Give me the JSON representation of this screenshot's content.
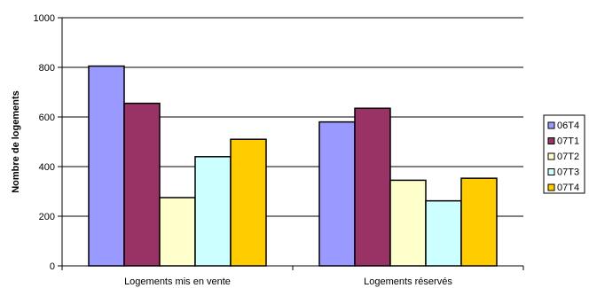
{
  "chart_data": {
    "type": "bar",
    "title": "",
    "xlabel": "",
    "ylabel": "Nombre de logements",
    "ylim": [
      0,
      1000
    ],
    "yticks": [
      0,
      200,
      400,
      600,
      800,
      1000
    ],
    "grid": true,
    "legend_position": "right",
    "categories": [
      "Logements mis en vente",
      "Logements réservés"
    ],
    "series": [
      {
        "name": "06T4",
        "color": "#9999ff",
        "values": [
          805,
          580
        ]
      },
      {
        "name": "07T1",
        "color": "#993366",
        "values": [
          655,
          635
        ]
      },
      {
        "name": "07T2",
        "color": "#ffffcc",
        "values": [
          275,
          345
        ]
      },
      {
        "name": "07T3",
        "color": "#ccffff",
        "values": [
          440,
          262
        ]
      },
      {
        "name": "07T4",
        "color": "#ffcc00",
        "values": [
          510,
          353
        ]
      }
    ]
  }
}
